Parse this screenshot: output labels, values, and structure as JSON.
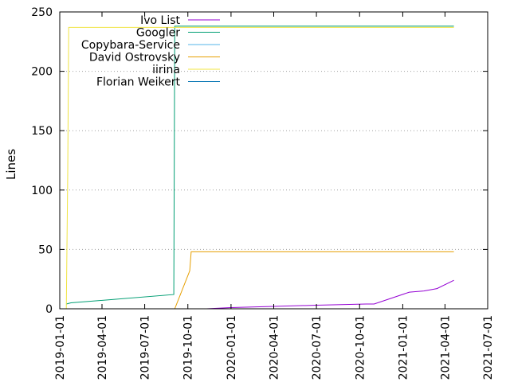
{
  "chart_data": {
    "type": "line",
    "title": "",
    "xlabel": "",
    "ylabel": "Lines",
    "ylim": [
      0,
      250
    ],
    "xlim": [
      "2019-01-01",
      "2021-07-01"
    ],
    "y_ticks": [
      0,
      50,
      100,
      150,
      200,
      250
    ],
    "x_ticks": [
      "2019-01-01",
      "2019-04-01",
      "2019-07-01",
      "2019-10-01",
      "2020-01-01",
      "2020-04-01",
      "2020-07-01",
      "2020-10-01",
      "2021-01-01",
      "2021-04-01",
      "2021-07-01"
    ],
    "grid": "horizontal dotted",
    "legend_position": "top-left",
    "series": [
      {
        "name": "Ivo List",
        "color": "#9400d3",
        "points": [
          [
            "2019-11-10",
            0
          ],
          [
            "2020-01-01",
            1
          ],
          [
            "2020-04-01",
            2
          ],
          [
            "2020-07-01",
            3
          ],
          [
            "2020-10-15",
            4
          ],
          [
            "2020-11-01",
            4
          ],
          [
            "2021-01-15",
            14
          ],
          [
            "2021-02-15",
            15
          ],
          [
            "2021-03-15",
            17
          ],
          [
            "2021-04-20",
            24
          ]
        ]
      },
      {
        "name": "Googler",
        "color": "#009e73",
        "points": [
          [
            "2019-01-15",
            4
          ],
          [
            "2019-01-25",
            5
          ],
          [
            "2019-09-01",
            12
          ],
          [
            "2019-09-03",
            238
          ],
          [
            "2021-04-20",
            238
          ]
        ]
      },
      {
        "name": "Copybara-Service",
        "color": "#56b4e9",
        "points": []
      },
      {
        "name": "David Ostrovsky",
        "color": "#e69f00",
        "points": [
          [
            "2019-09-03",
            0
          ],
          [
            "2019-10-05",
            32
          ],
          [
            "2019-10-08",
            48
          ],
          [
            "2021-04-20",
            48
          ]
        ]
      },
      {
        "name": "iirina",
        "color": "#f0e442",
        "points": [
          [
            "2019-01-15",
            0
          ],
          [
            "2019-01-18",
            115
          ],
          [
            "2019-01-20",
            237
          ],
          [
            "2021-04-20",
            237
          ]
        ]
      },
      {
        "name": "Florian Weikert",
        "color": "#0072b2",
        "points": []
      }
    ]
  }
}
